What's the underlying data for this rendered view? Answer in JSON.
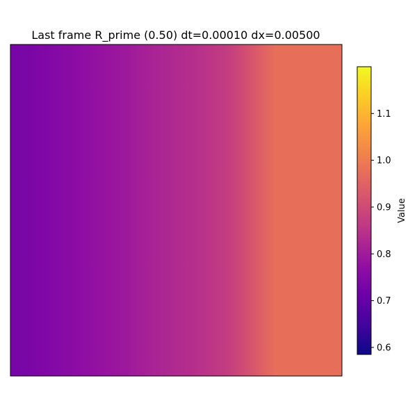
{
  "chart_data": {
    "type": "heatmap",
    "title": "Last frame R_prime (0.50) dt=0.00010 dx=0.00500",
    "xlabel": "",
    "ylabel": "",
    "x_ticks_shown": false,
    "y_ticks_shown": false,
    "colormap": "plasma",
    "note": "field varies only along x; values listed left-to-right, constant in y",
    "x": [
      0.0,
      0.05,
      0.1,
      0.15,
      0.2,
      0.25,
      0.3,
      0.35,
      0.4,
      0.45,
      0.5,
      0.55,
      0.6,
      0.65,
      0.7,
      0.75,
      0.8,
      0.85,
      0.9,
      0.95,
      1.0
    ],
    "values": [
      0.73,
      0.735,
      0.745,
      0.755,
      0.765,
      0.775,
      0.785,
      0.795,
      0.81,
      0.82,
      0.83,
      0.84,
      0.855,
      0.87,
      0.9,
      0.94,
      0.975,
      0.975,
      0.975,
      0.975,
      0.975
    ],
    "colorbar": {
      "label": "Value",
      "vmin": 0.585,
      "vmax": 1.2,
      "ticks": [
        0.6,
        0.7,
        0.8,
        0.9,
        1.0,
        1.1
      ],
      "tick_labels": [
        "0.6",
        "0.7",
        "0.8",
        "0.9",
        "1.0",
        "1.1"
      ]
    }
  }
}
